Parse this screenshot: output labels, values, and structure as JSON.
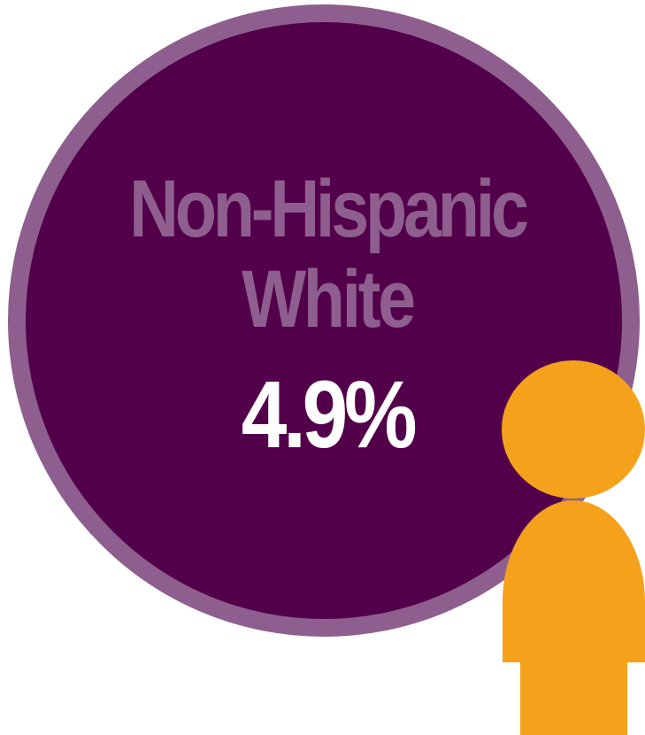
{
  "infographic": {
    "group_line1": "Non-Hispanic",
    "group_line2": "White",
    "percentage": "4.9%"
  },
  "colors": {
    "circle_fill": "#53004a",
    "circle_ring": "#8e5f8e",
    "group_text": "#8e5f8e",
    "percentage_text": "#ffffff",
    "person_icon": "#f4a21c",
    "background": "#ffffff"
  },
  "icons": {
    "person": "person-icon"
  }
}
